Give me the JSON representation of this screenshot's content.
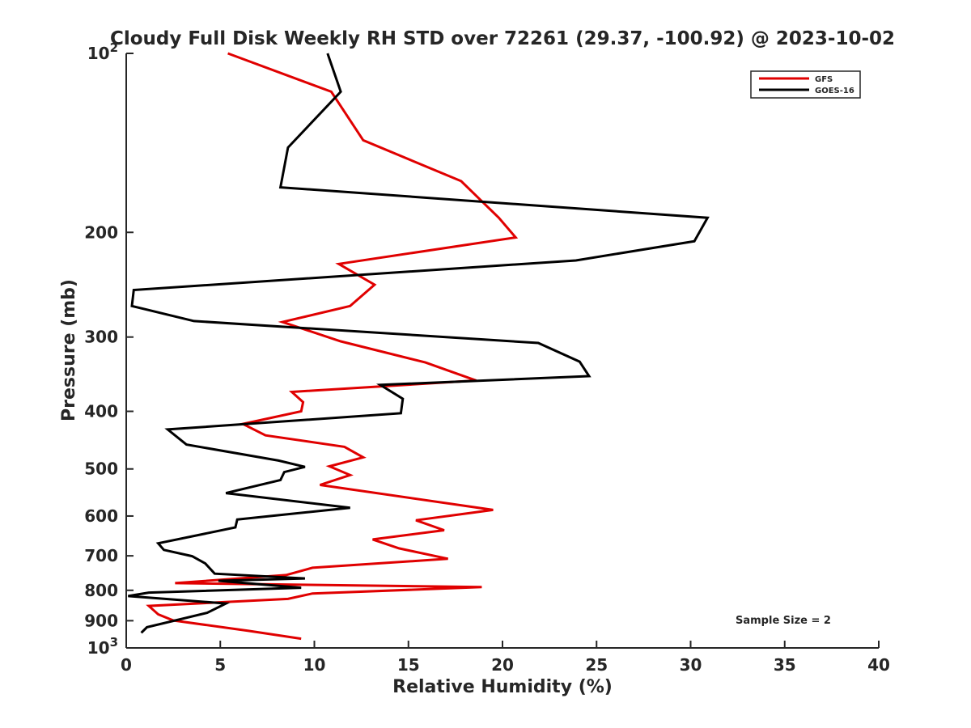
{
  "chart_data": {
    "type": "line",
    "title": "Cloudy Full Disk Weekly RH STD over 72261 (29.37, -100.92) @ 2023-10-02",
    "xlabel": "Relative Humidity (%)",
    "ylabel": "Pressure (mb)",
    "xlim": [
      0,
      40
    ],
    "ylim": [
      100,
      1000
    ],
    "yscale": "log",
    "y_reversed": true,
    "grid": false,
    "legend_position": "top-right",
    "x_ticks": [
      "0",
      "5",
      "10",
      "15",
      "20",
      "25",
      "30",
      "35",
      "40"
    ],
    "x_tick_values": [
      0,
      5,
      10,
      15,
      20,
      25,
      30,
      35,
      40
    ],
    "y_ticks": [
      {
        "value": 100,
        "base": "10",
        "exp": "2"
      },
      {
        "value": 200,
        "label": "200"
      },
      {
        "value": 300,
        "label": "300"
      },
      {
        "value": 400,
        "label": "400"
      },
      {
        "value": 500,
        "label": "500"
      },
      {
        "value": 600,
        "label": "600"
      },
      {
        "value": 700,
        "label": "700"
      },
      {
        "value": 800,
        "label": "800"
      },
      {
        "value": 900,
        "label": "900"
      },
      {
        "value": 1000,
        "base": "10",
        "exp": "3"
      }
    ],
    "annotation": "Sample Size = 2",
    "series": [
      {
        "name": "GFS",
        "color": "#e00000",
        "x": [
          5.4,
          10.9,
          12.6,
          17.8,
          19.8,
          20.7,
          11.3,
          13.2,
          11.9,
          8.3,
          11.4,
          15.9,
          18.6,
          8.8,
          9.4,
          9.3,
          6.2,
          7.4,
          11.6,
          12.6,
          10.8,
          11.9,
          10.3,
          19.5,
          15.4,
          16.9,
          13.1,
          14.5,
          17.1,
          9.9,
          8.5,
          2.6,
          18.9,
          9.9,
          8.6,
          1.2,
          1.7,
          2.5,
          6.5,
          9.3
        ],
        "y": [
          100,
          116,
          140,
          164,
          189,
          204,
          226,
          245,
          266,
          283,
          305,
          331,
          355,
          371,
          386,
          400,
          420,
          439,
          459,
          478,
          495,
          512,
          532,
          586,
          610,
          634,
          657,
          680,
          708,
          733,
          754,
          778,
          790,
          810,
          827,
          850,
          878,
          899,
          936,
          965
        ]
      },
      {
        "name": "GOES-16",
        "color": "#000000",
        "x": [
          10.7,
          11.4,
          8.6,
          8.2,
          30.9,
          30.2,
          23.9,
          0.4,
          0.3,
          3.6,
          21.9,
          24.1,
          24.6,
          13.5,
          14.7,
          14.6,
          2.2,
          3.2,
          8.1,
          9.5,
          8.4,
          8.2,
          5.3,
          11.9,
          5.9,
          5.8,
          1.7,
          2.0,
          3.5,
          4.2,
          4.7,
          9.5,
          4.9,
          9.3,
          1.2,
          0.1,
          5.3,
          4.3,
          1.1,
          0.8
        ],
        "y": [
          100,
          116,
          144,
          168,
          189,
          207,
          223,
          250,
          266,
          282,
          307,
          330,
          349,
          361,
          381,
          403,
          429,
          455,
          484,
          496,
          506,
          522,
          549,
          581,
          608,
          627,
          667,
          684,
          701,
          721,
          750,
          764,
          771,
          792,
          807,
          818,
          842,
          873,
          923,
          943
        ]
      }
    ]
  }
}
